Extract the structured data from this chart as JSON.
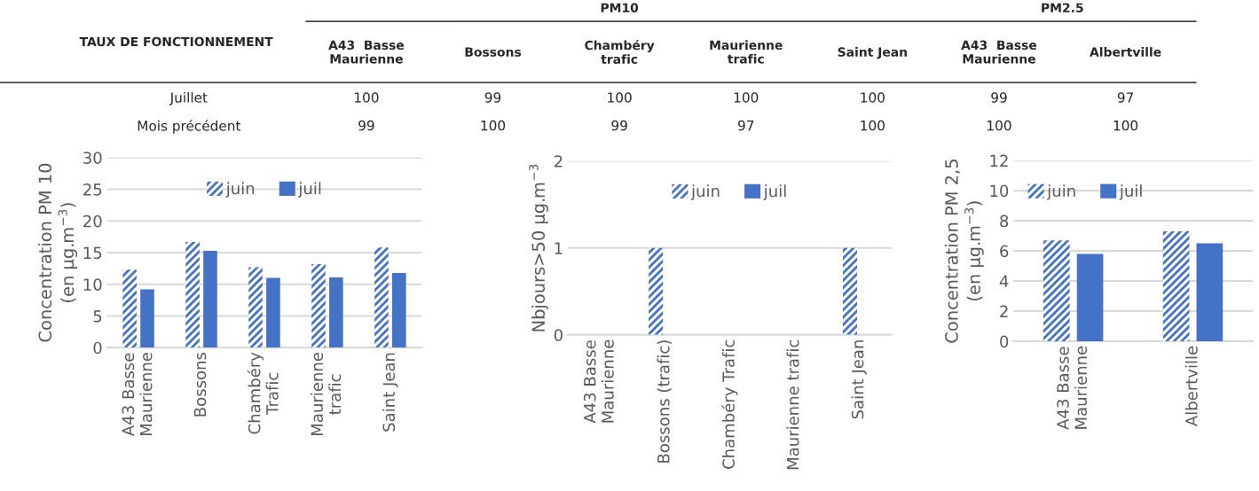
{
  "chart_data": [
    {
      "type": "other",
      "title": "TAUX DE FONCTIONNEMENT",
      "annotations": [
        "PM10",
        "PM2.5"
      ],
      "categories": [
        "A43  Basse\nMaurienne",
        "Bossons",
        "Chambéry\ntrafic",
        "Maurienne\ntrafic",
        "Saint Jean",
        "A43  Basse\nMaurienne",
        "Albertville"
      ],
      "series": [
        {
          "name": "Juillet",
          "values": [
            100,
            99,
            100,
            100,
            100,
            99,
            97
          ]
        },
        {
          "name": "Mois précédent",
          "values": [
            99,
            100,
            99,
            97,
            100,
            100,
            100
          ]
        }
      ],
      "data_labels": true
    },
    {
      "type": "bar",
      "ylabel": "Concentration PM 10\n(en µg.m$^{−3}$)",
      "categories": [
        "A43 Basse\nMaurienne",
        "Bossons",
        "Chambéry\nTrafic",
        "Maurienne\ntrafic",
        "Saint Jean"
      ],
      "series": [
        {
          "name": "juin",
          "color": "#4472c4",
          "values": [
            12.3,
            16.7,
            12.7,
            13.2,
            15.8
          ]
        },
        {
          "name": "juil",
          "color": "#4472c4",
          "values": [
            9.2,
            15.3,
            11.0,
            11.1,
            11.8
          ]
        }
      ],
      "ylim": [
        0,
        30
      ],
      "yticks": [
        0,
        5,
        10,
        15,
        20,
        25,
        30
      ],
      "grid": "y",
      "legend": "top"
    },
    {
      "type": "bar",
      "ylabel": "Nbjours>50 µg.m$^{−3}$",
      "categories": [
        "A43 Basse\nMaurienne",
        "Bossons (trafic)",
        "Chambéry Trafic",
        "Maurienne trafic",
        "Saint Jean"
      ],
      "series": [
        {
          "name": "juin",
          "color": "#4472c4",
          "values": [
            0,
            1,
            0,
            0,
            1
          ]
        },
        {
          "name": "juil",
          "color": "#4472c4",
          "values": [
            0,
            0,
            0,
            0,
            0
          ]
        }
      ],
      "ylim": [
        0,
        2
      ],
      "yticks": [
        0,
        1,
        2
      ],
      "grid": "y",
      "legend": "top"
    },
    {
      "type": "bar",
      "ylabel": "Concentration PM 2,5\n(en µg.m$^{−3}$)",
      "categories": [
        "A43 Basse\nMaurienne",
        "Albertville"
      ],
      "series": [
        {
          "name": "juin",
          "color": "#4472c4",
          "values": [
            6.7,
            7.3
          ]
        },
        {
          "name": "juil",
          "color": "#4472c4",
          "values": [
            5.8,
            6.5
          ]
        }
      ],
      "ylim": [
        0,
        12
      ],
      "yticks": [
        0,
        2,
        4,
        6,
        8,
        10,
        12
      ],
      "grid": "y",
      "legend": "top left"
    }
  ]
}
